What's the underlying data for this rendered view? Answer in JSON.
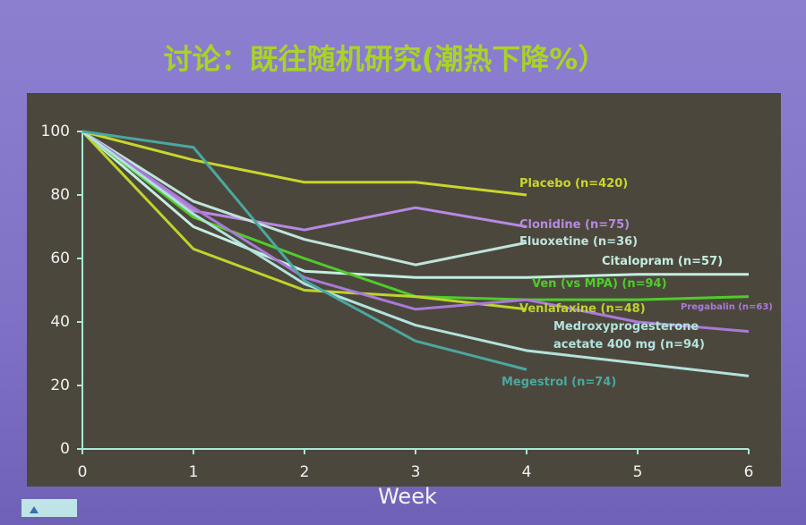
{
  "chart_data": {
    "type": "line",
    "title": "讨论：既往随机研究(潮热下降%）",
    "x_label": "Week",
    "x": [
      0,
      1,
      2,
      3,
      4,
      5,
      6
    ],
    "xlim": [
      0,
      6
    ],
    "xticks": [
      0,
      1,
      2,
      3,
      4,
      5,
      6
    ],
    "ylim": [
      0,
      100
    ],
    "yticks": [
      0,
      20,
      40,
      60,
      80,
      100
    ],
    "series": [
      {
        "name": "Placebo (n=420)",
        "color": "#c9d62c",
        "values": [
          100,
          91,
          84,
          84,
          80,
          null,
          null
        ]
      },
      {
        "name": "Clonidine (n=75)",
        "color": "#b68ae2",
        "values": [
          100,
          75,
          69,
          76,
          70,
          null,
          null
        ]
      },
      {
        "name": "Fluoxetine (n=36)",
        "color": "#bfe4dc",
        "values": [
          100,
          78,
          66,
          58,
          65,
          null,
          null
        ]
      },
      {
        "name": "Citalopram (n=57)",
        "color": "#c4eee2",
        "values": [
          100,
          70,
          56,
          54,
          54,
          55,
          55
        ]
      },
      {
        "name": "Ven (vs MPA) (n=94)",
        "color": "#4fcc2c",
        "values": [
          100,
          73,
          60,
          48,
          47,
          47,
          48
        ]
      },
      {
        "name": "Venlafaxine (n=48)",
        "color": "#bdd42c",
        "values": [
          100,
          63,
          50,
          48,
          44,
          null,
          null
        ]
      },
      {
        "name": "Pregabalin (n=63)",
        "color": "#a97ad8",
        "values": [
          100,
          76,
          54,
          44,
          47,
          40,
          37
        ]
      },
      {
        "name": "Medroxyprogesterone acetate 400 mg (n=94)",
        "color": "#b2e2de",
        "values": [
          100,
          74,
          52,
          39,
          31,
          27,
          23
        ]
      },
      {
        "name": "Megestrol (n=74)",
        "color": "#4aa8a0",
        "values": [
          100,
          95,
          53,
          34,
          25,
          null,
          null
        ]
      }
    ]
  }
}
